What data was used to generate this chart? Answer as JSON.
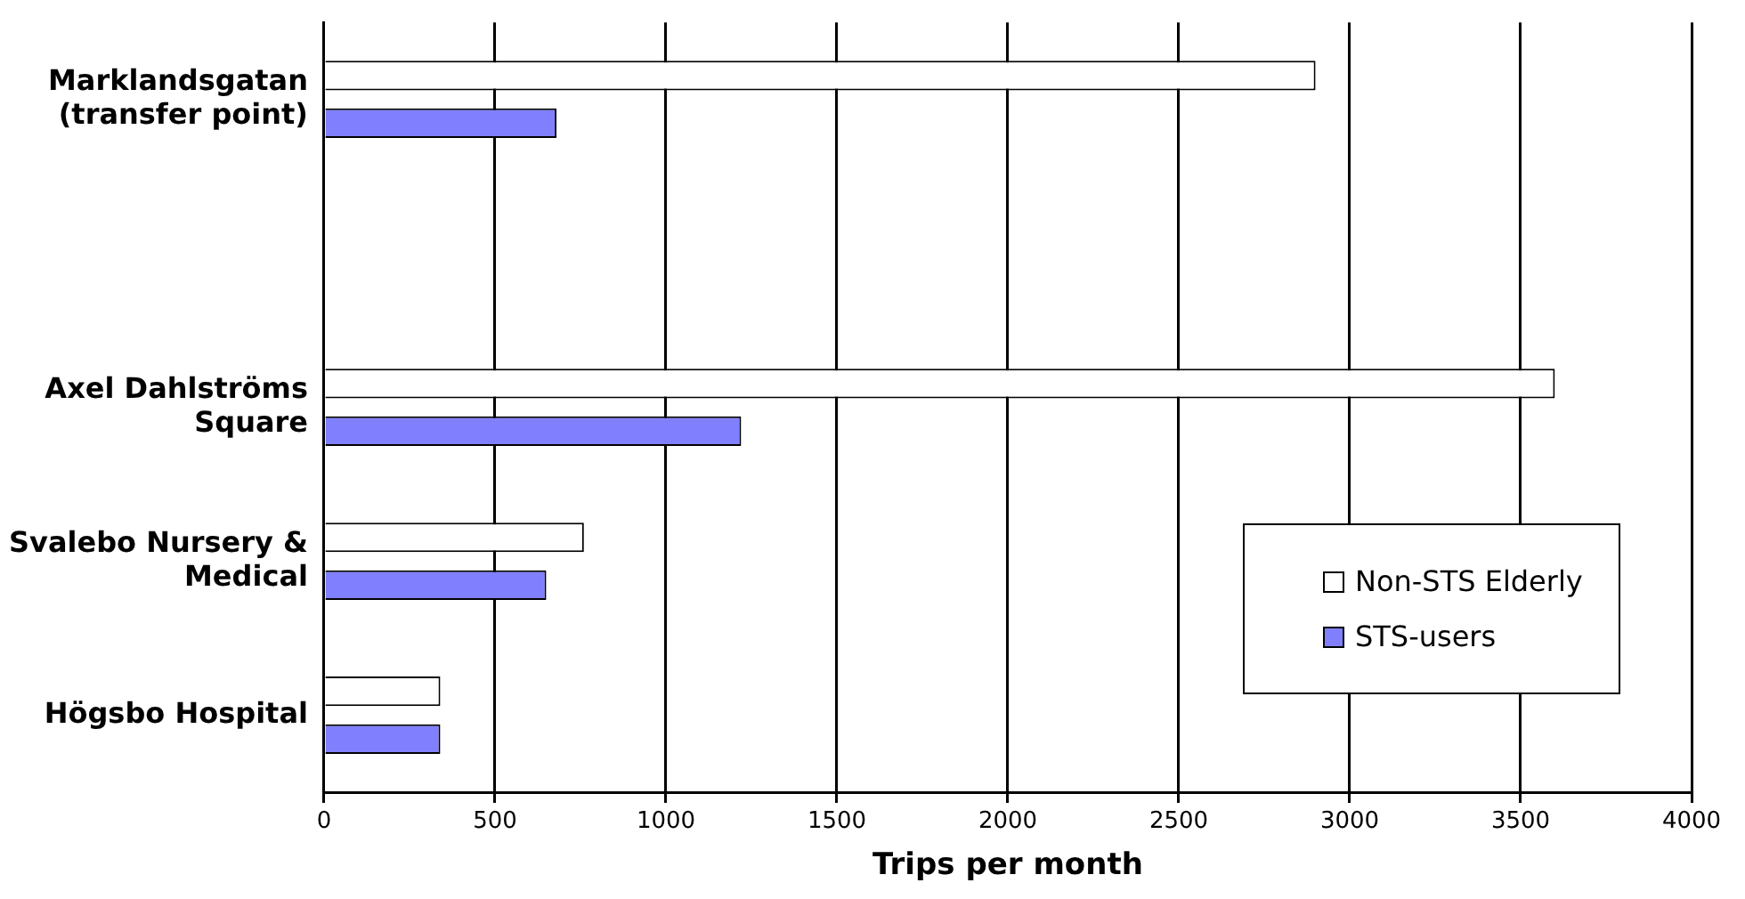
{
  "chart_data": {
    "type": "bar",
    "orientation": "horizontal",
    "xlabel": "Trips per month",
    "categories": [
      "Marklandsgatan (transfer point)",
      null,
      "Axel Dahlströms Square",
      "Svalebo Nursery & Medical",
      "Högsbo Hospital"
    ],
    "series": [
      {
        "name": "Non-STS Elderly",
        "color": "#ffffff",
        "values": [
          2900,
          null,
          3600,
          760,
          340
        ]
      },
      {
        "name": "STS-users",
        "color": "#8080ff",
        "values": [
          680,
          null,
          1220,
          650,
          340
        ]
      }
    ],
    "xlim": [
      0,
      4000
    ],
    "xticks": [
      0,
      500,
      1000,
      1500,
      2000,
      2500,
      3000,
      3500,
      4000
    ],
    "grid": "x",
    "legend": "bottom right"
  }
}
